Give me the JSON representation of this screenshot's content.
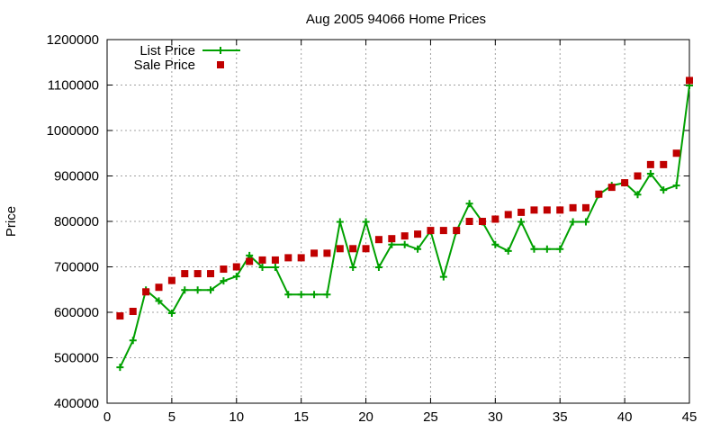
{
  "chart_data": {
    "type": "line",
    "title": "Aug 2005 94066 Home Prices",
    "xlabel": "",
    "ylabel": "Price",
    "xlim": [
      0,
      45
    ],
    "ylim": [
      400000,
      1200000
    ],
    "x_ticks": [
      0,
      5,
      10,
      15,
      20,
      25,
      30,
      35,
      40,
      45
    ],
    "y_ticks": [
      400000,
      500000,
      600000,
      700000,
      800000,
      900000,
      1000000,
      1100000,
      1200000
    ],
    "grid": true,
    "legend_position": "top-left",
    "series": [
      {
        "name": "List Price",
        "style": "line-plus",
        "color": "#00a000",
        "x": [
          1,
          2,
          3,
          4,
          5,
          6,
          7,
          8,
          9,
          10,
          11,
          12,
          13,
          14,
          15,
          16,
          17,
          18,
          19,
          20,
          21,
          22,
          23,
          24,
          25,
          26,
          27,
          28,
          29,
          30,
          31,
          32,
          33,
          34,
          35,
          36,
          37,
          38,
          39,
          40,
          41,
          42,
          43,
          44,
          45
        ],
        "values": [
          479000,
          538000,
          649000,
          625000,
          598000,
          649000,
          649000,
          649000,
          669000,
          679000,
          725000,
          699000,
          699000,
          639000,
          639000,
          639000,
          639000,
          799000,
          699000,
          799000,
          699000,
          749000,
          749000,
          739000,
          779000,
          678000,
          779000,
          839000,
          799000,
          749000,
          735000,
          799000,
          739000,
          739000,
          739000,
          799000,
          799000,
          859000,
          879000,
          885000,
          859000,
          905000,
          869000,
          879000,
          1099000
        ]
      },
      {
        "name": "Sale Price",
        "style": "points-square",
        "color": "#c00000",
        "x": [
          1,
          2,
          3,
          4,
          5,
          6,
          7,
          8,
          9,
          10,
          11,
          12,
          13,
          14,
          15,
          16,
          17,
          18,
          19,
          20,
          21,
          22,
          23,
          24,
          25,
          26,
          27,
          28,
          29,
          30,
          31,
          32,
          33,
          34,
          35,
          36,
          37,
          38,
          39,
          40,
          41,
          42,
          43,
          44,
          45
        ],
        "values": [
          592000,
          602000,
          645000,
          655000,
          670000,
          685000,
          685000,
          685000,
          695000,
          700000,
          712000,
          715000,
          715000,
          720000,
          720000,
          730000,
          730000,
          740000,
          740000,
          740000,
          760000,
          762000,
          768000,
          772000,
          780000,
          780000,
          780000,
          800000,
          800000,
          805000,
          815000,
          820000,
          825000,
          825000,
          825000,
          830000,
          830000,
          860000,
          875000,
          885000,
          900000,
          925000,
          925000,
          950000,
          1110000
        ]
      }
    ]
  }
}
